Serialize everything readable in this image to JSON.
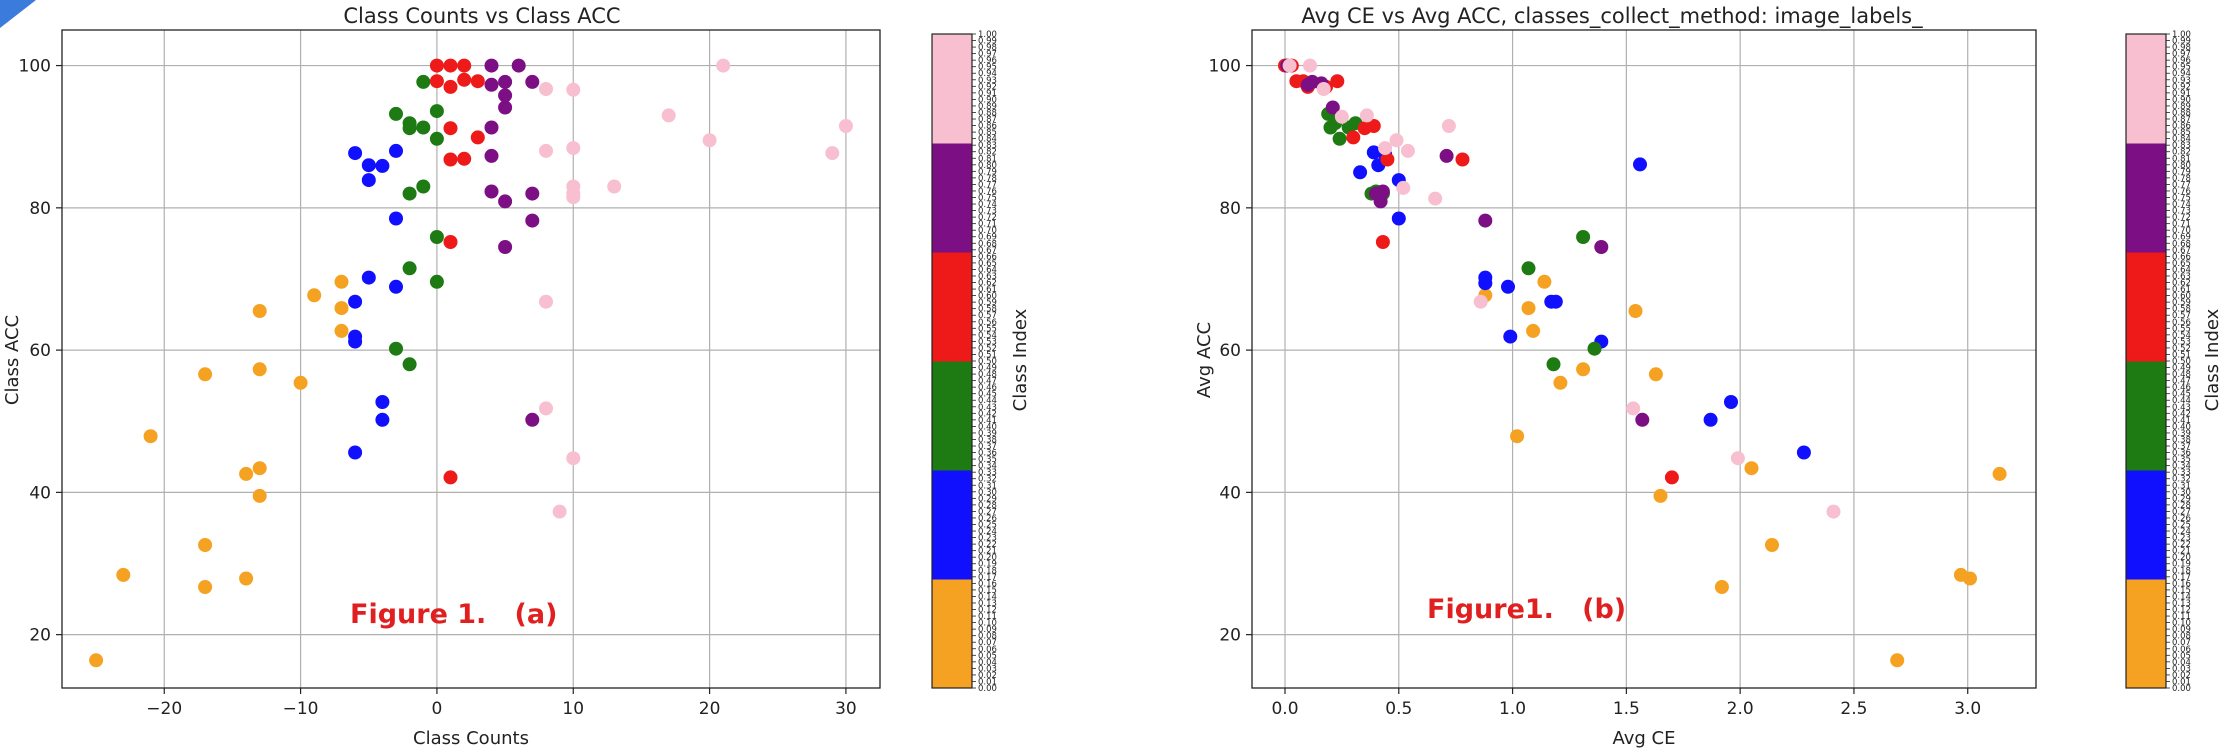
{
  "figure_notes": [
    "Figure 1.   (a)",
    "Figure1.   (b)"
  ],
  "colorbar_label": "Class Index",
  "colors": {
    "text": "#222222",
    "grid": "#b0b0b0",
    "annotation": "#e02020",
    "corner_accent": "#3b7bdc",
    "groups": [
      "#f5a122",
      "#1010ff",
      "#1e7a12",
      "#ee1a1a",
      "#7b0f83",
      "#f7bfd0"
    ]
  },
  "chart_data": [
    {
      "type": "scatter",
      "title": "Class Counts vs Class ACC",
      "xlabel": "Class Counts",
      "ylabel": "Class ACC",
      "xlim": [
        -27.5,
        32.5
      ],
      "ylim": [
        12.5,
        105
      ],
      "xticks": [
        "−20",
        "−10",
        "0",
        "10",
        "20",
        "30"
      ],
      "yticks": [
        "20",
        "40",
        "60",
        "80",
        "100"
      ],
      "grid": true,
      "colorbar": {
        "label": "Class Index",
        "range": [
          0.0,
          1.0
        ],
        "tick_step": 0.01,
        "groups": 6
      },
      "series": [
        {
          "group": 0,
          "points": [
            [
              -25,
              16.4
            ],
            [
              -23,
              28.4
            ],
            [
              -21,
              47.9
            ],
            [
              -17,
              56.6
            ],
            [
              -17,
              32.6
            ],
            [
              -17,
              26.7
            ],
            [
              -14,
              42.6
            ],
            [
              -14,
              27.9
            ],
            [
              -13,
              65.5
            ],
            [
              -13,
              57.3
            ],
            [
              -13,
              43.4
            ],
            [
              -13,
              39.5
            ],
            [
              -10,
              55.4
            ],
            [
              -9,
              67.7
            ],
            [
              -7,
              69.6
            ],
            [
              -7,
              65.9
            ],
            [
              -7,
              62.7
            ]
          ]
        },
        {
          "group": 1,
          "points": [
            [
              -6,
              87.7
            ],
            [
              -6,
              66.8
            ],
            [
              -6,
              61.9
            ],
            [
              -6,
              61.2
            ],
            [
              -6,
              45.6
            ],
            [
              -5,
              86.0
            ],
            [
              -5,
              83.9
            ],
            [
              -5,
              70.2
            ],
            [
              -4,
              85.9
            ],
            [
              -4,
              52.7
            ],
            [
              -4,
              50.2
            ],
            [
              -3,
              88.0
            ],
            [
              -3,
              78.5
            ],
            [
              -3,
              68.9
            ]
          ]
        },
        {
          "group": 2,
          "points": [
            [
              -3,
              93.2
            ],
            [
              -3,
              60.2
            ],
            [
              -2,
              91.9
            ],
            [
              -2,
              91.2
            ],
            [
              -2,
              82.0
            ],
            [
              -2,
              71.5
            ],
            [
              -2,
              58.0
            ],
            [
              -1,
              97.7
            ],
            [
              -1,
              91.3
            ],
            [
              -1,
              83.0
            ],
            [
              0,
              93.6
            ],
            [
              0,
              89.7
            ],
            [
              0,
              75.9
            ],
            [
              0,
              69.6
            ]
          ]
        },
        {
          "group": 3,
          "points": [
            [
              0,
              100
            ],
            [
              0,
              97.8
            ],
            [
              1,
              100
            ],
            [
              1,
              97.0
            ],
            [
              1,
              91.2
            ],
            [
              1,
              86.8
            ],
            [
              1,
              75.2
            ],
            [
              1,
              42.1
            ],
            [
              2,
              100
            ],
            [
              2,
              98.0
            ],
            [
              2,
              86.9
            ],
            [
              3,
              97.8
            ],
            [
              3,
              89.9
            ]
          ]
        },
        {
          "group": 4,
          "points": [
            [
              4,
              100
            ],
            [
              4,
              97.3
            ],
            [
              4,
              91.3
            ],
            [
              4,
              87.3
            ],
            [
              4,
              82.3
            ],
            [
              5,
              97.7
            ],
            [
              5,
              95.8
            ],
            [
              5,
              94.1
            ],
            [
              5,
              80.9
            ],
            [
              5,
              74.5
            ],
            [
              6,
              100
            ],
            [
              7,
              97.7
            ],
            [
              7,
              82.0
            ],
            [
              7,
              78.2
            ],
            [
              7,
              50.2
            ]
          ]
        },
        {
          "group": 5,
          "points": [
            [
              8,
              96.7
            ],
            [
              8,
              88.0
            ],
            [
              8,
              66.8
            ],
            [
              8,
              51.8
            ],
            [
              9,
              37.3
            ],
            [
              10,
              96.6
            ],
            [
              10,
              88.4
            ],
            [
              10,
              83.0
            ],
            [
              10,
              82.0
            ],
            [
              10,
              81.5
            ],
            [
              10,
              44.8
            ],
            [
              13,
              83.0
            ],
            [
              17,
              93.0
            ],
            [
              20,
              89.5
            ],
            [
              21,
              100
            ],
            [
              29,
              87.7
            ],
            [
              30,
              91.5
            ]
          ]
        }
      ]
    },
    {
      "type": "scatter",
      "title": "Avg CE vs Avg ACC, classes_collect_method: image_labels_",
      "xlabel": "Avg CE",
      "ylabel": "Avg ACC",
      "xlim": [
        -0.145,
        3.3
      ],
      "ylim": [
        12.5,
        105
      ],
      "xticks": [
        "0.0",
        "0.5",
        "1.0",
        "1.5",
        "2.0",
        "2.5",
        "3.0"
      ],
      "yticks": [
        "20",
        "40",
        "60",
        "80",
        "100"
      ],
      "grid": true,
      "colorbar": {
        "label": "Class Index",
        "range": [
          0.0,
          1.0
        ],
        "tick_step": 0.01,
        "groups": 6
      },
      "series": [
        {
          "group": 0,
          "points": [
            [
              0.88,
              67.7
            ],
            [
              1.02,
              47.9
            ],
            [
              1.07,
              65.9
            ],
            [
              1.09,
              62.7
            ],
            [
              1.14,
              69.6
            ],
            [
              1.21,
              55.4
            ],
            [
              1.31,
              57.3
            ],
            [
              1.54,
              65.5
            ],
            [
              1.63,
              56.6
            ],
            [
              1.65,
              39.5
            ],
            [
              2.05,
              43.4
            ],
            [
              2.14,
              32.6
            ],
            [
              1.92,
              26.7
            ],
            [
              2.69,
              16.4
            ],
            [
              2.97,
              28.4
            ],
            [
              3.01,
              27.9
            ],
            [
              3.14,
              42.6
            ]
          ]
        },
        {
          "group": 1,
          "points": [
            [
              0.33,
              85.0
            ],
            [
              0.39,
              87.8
            ],
            [
              0.41,
              86.0
            ],
            [
              0.44,
              87.5
            ],
            [
              0.5,
              83.9
            ],
            [
              0.5,
              78.5
            ],
            [
              0.88,
              70.2
            ],
            [
              0.88,
              69.4
            ],
            [
              0.98,
              68.9
            ],
            [
              0.99,
              61.9
            ],
            [
              1.17,
              66.8
            ],
            [
              1.19,
              66.8
            ],
            [
              1.39,
              61.2
            ],
            [
              1.56,
              86.1
            ],
            [
              1.87,
              50.2
            ],
            [
              1.96,
              52.7
            ],
            [
              2.28,
              45.6
            ]
          ]
        },
        {
          "group": 2,
          "points": [
            [
              0.19,
              93.2
            ],
            [
              0.2,
              91.3
            ],
            [
              0.22,
              91.9
            ],
            [
              0.24,
              89.7
            ],
            [
              0.28,
              91.3
            ],
            [
              0.31,
              91.9
            ],
            [
              0.38,
              82.0
            ],
            [
              0.4,
              82.3
            ],
            [
              0.43,
              82.0
            ],
            [
              1.07,
              71.5
            ],
            [
              1.18,
              58.0
            ],
            [
              1.31,
              75.9
            ],
            [
              1.36,
              60.2
            ]
          ]
        },
        {
          "group": 3,
          "points": [
            [
              0.0,
              100
            ],
            [
              0.03,
              100
            ],
            [
              0.05,
              97.8
            ],
            [
              0.08,
              97.8
            ],
            [
              0.1,
              97.0
            ],
            [
              0.18,
              97.0
            ],
            [
              0.23,
              97.8
            ],
            [
              0.3,
              89.9
            ],
            [
              0.35,
              91.2
            ],
            [
              0.39,
              91.5
            ],
            [
              0.45,
              86.8
            ],
            [
              0.43,
              75.2
            ],
            [
              0.78,
              86.8
            ],
            [
              1.7,
              42.1
            ]
          ]
        },
        {
          "group": 4,
          "points": [
            [
              0.01,
              100
            ],
            [
              0.1,
              97.3
            ],
            [
              0.12,
              97.7
            ],
            [
              0.16,
              97.5
            ],
            [
              0.21,
              94.1
            ],
            [
              0.4,
              82.0
            ],
            [
              0.42,
              80.9
            ],
            [
              0.43,
              82.3
            ],
            [
              0.71,
              87.3
            ],
            [
              0.88,
              78.2
            ],
            [
              1.39,
              74.5
            ],
            [
              1.57,
              50.2
            ]
          ]
        },
        {
          "group": 5,
          "points": [
            [
              0.02,
              100
            ],
            [
              0.11,
              100
            ],
            [
              0.17,
              96.7
            ],
            [
              0.25,
              92.8
            ],
            [
              0.36,
              93.0
            ],
            [
              0.44,
              88.4
            ],
            [
              0.49,
              89.5
            ],
            [
              0.54,
              88.0
            ],
            [
              0.52,
              82.8
            ],
            [
              0.66,
              81.3
            ],
            [
              0.72,
              91.5
            ],
            [
              0.86,
              66.8
            ],
            [
              1.53,
              51.8
            ],
            [
              1.99,
              44.8
            ],
            [
              2.41,
              37.3
            ]
          ]
        }
      ]
    }
  ]
}
